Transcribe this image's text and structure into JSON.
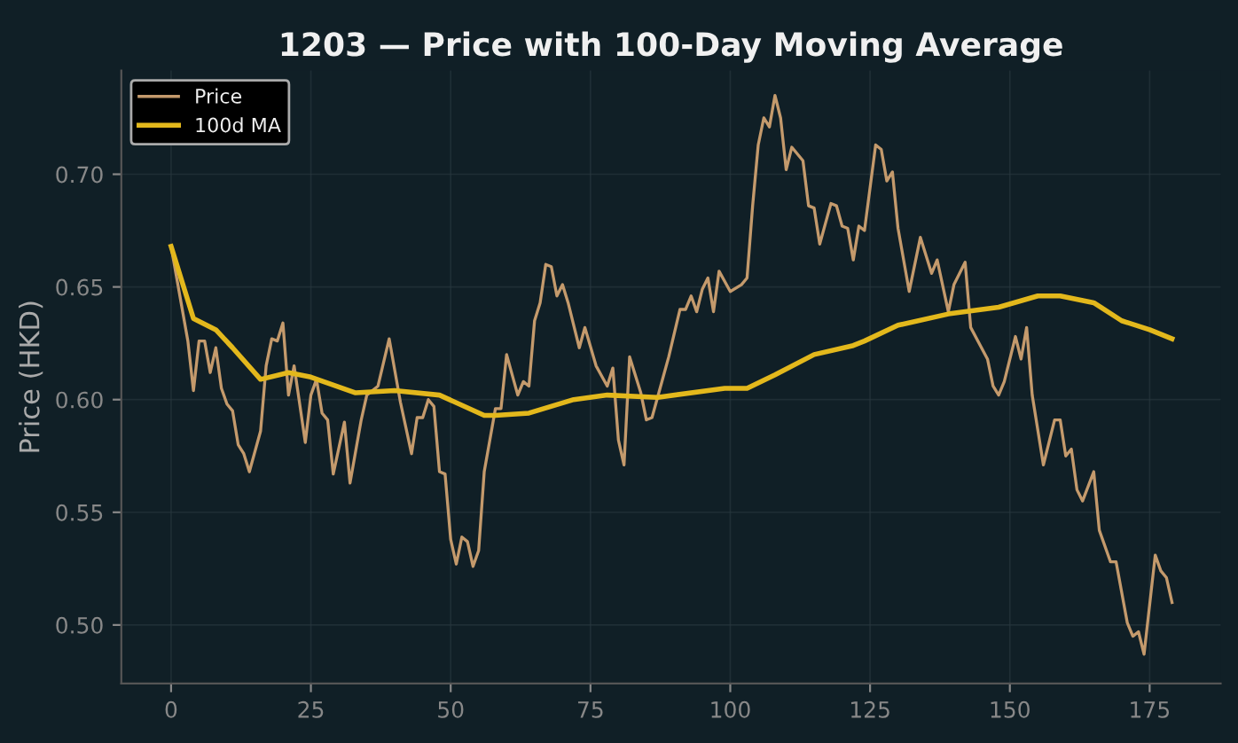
{
  "chart_data": {
    "type": "line",
    "title": "1203 — Price with 100-Day Moving Average",
    "ylabel": "Price (HKD)",
    "xlim": [
      -8.9,
      187.7
    ],
    "ylim": [
      0.474,
      0.746
    ],
    "xticks": [
      0,
      25,
      50,
      75,
      100,
      125,
      150,
      175
    ],
    "yticks": [
      {
        "value": 0.5,
        "label": "0.50"
      },
      {
        "value": 0.55,
        "label": "0.55"
      },
      {
        "value": 0.6,
        "label": "0.60"
      },
      {
        "value": 0.65,
        "label": "0.65"
      },
      {
        "value": 0.7,
        "label": "0.70"
      }
    ],
    "grid": true,
    "legend": "top left",
    "series": [
      {
        "name": "Price",
        "color": "#c49a6c",
        "x": [
          0,
          3,
          4,
          5,
          6,
          7,
          8,
          9,
          10,
          11,
          12,
          13,
          14,
          16,
          17,
          18,
          19,
          20,
          21,
          22,
          24,
          25,
          26,
          27,
          28,
          29,
          31,
          32,
          34,
          35,
          37,
          39,
          41,
          43,
          44,
          45,
          46,
          47,
          48,
          49,
          50,
          51,
          52,
          53,
          54,
          55,
          56,
          58,
          59,
          60,
          62,
          63,
          64,
          65,
          66,
          67,
          68,
          69,
          70,
          71,
          73,
          74,
          76,
          78,
          79,
          80,
          81,
          82,
          84,
          85,
          86,
          88,
          89,
          91,
          92,
          93,
          94,
          95,
          96,
          97,
          98,
          100,
          102,
          103,
          104,
          105,
          106,
          107,
          108,
          109,
          110,
          111,
          113,
          114,
          115,
          116,
          118,
          119,
          120,
          121,
          122,
          123,
          124,
          126,
          127,
          128,
          129,
          130,
          132,
          134,
          136,
          137,
          139,
          140,
          142,
          143,
          146,
          147,
          148,
          149,
          151,
          152,
          153,
          154,
          156,
          158,
          159,
          160,
          161,
          162,
          163,
          165,
          166,
          168,
          169,
          171,
          172,
          173,
          174,
          176,
          177,
          178,
          179
        ],
        "values": [
          0.668,
          0.626,
          0.604,
          0.626,
          0.626,
          0.612,
          0.623,
          0.605,
          0.598,
          0.595,
          0.58,
          0.576,
          0.568,
          0.586,
          0.615,
          0.627,
          0.626,
          0.634,
          0.602,
          0.615,
          0.581,
          0.602,
          0.609,
          0.594,
          0.591,
          0.567,
          0.59,
          0.563,
          0.591,
          0.602,
          0.606,
          0.627,
          0.599,
          0.576,
          0.592,
          0.592,
          0.6,
          0.597,
          0.568,
          0.567,
          0.538,
          0.527,
          0.539,
          0.537,
          0.526,
          0.533,
          0.568,
          0.596,
          0.596,
          0.62,
          0.602,
          0.608,
          0.606,
          0.635,
          0.643,
          0.66,
          0.659,
          0.646,
          0.651,
          0.643,
          0.623,
          0.632,
          0.615,
          0.606,
          0.614,
          0.582,
          0.571,
          0.619,
          0.603,
          0.591,
          0.592,
          0.61,
          0.619,
          0.64,
          0.64,
          0.646,
          0.639,
          0.649,
          0.654,
          0.639,
          0.657,
          0.648,
          0.651,
          0.654,
          0.686,
          0.713,
          0.725,
          0.721,
          0.735,
          0.725,
          0.702,
          0.712,
          0.706,
          0.686,
          0.685,
          0.669,
          0.687,
          0.686,
          0.677,
          0.676,
          0.662,
          0.677,
          0.675,
          0.713,
          0.711,
          0.697,
          0.701,
          0.676,
          0.648,
          0.672,
          0.656,
          0.662,
          0.639,
          0.651,
          0.661,
          0.632,
          0.618,
          0.606,
          0.602,
          0.608,
          0.628,
          0.618,
          0.632,
          0.602,
          0.571,
          0.591,
          0.591,
          0.575,
          0.578,
          0.56,
          0.555,
          0.568,
          0.542,
          0.528,
          0.528,
          0.501,
          0.495,
          0.497,
          0.487,
          0.531,
          0.524,
          0.521,
          0.51
        ]
      },
      {
        "name": "100d MA",
        "color": "#e3b81c",
        "x": [
          0,
          4,
          8,
          11,
          16,
          21,
          25,
          33,
          40,
          48,
          56,
          58,
          64,
          72,
          78,
          87,
          99,
          103,
          108,
          115,
          122,
          124,
          130,
          139,
          148,
          155,
          159,
          165,
          170,
          175,
          179
        ],
        "values": [
          0.668,
          0.636,
          0.631,
          0.623,
          0.609,
          0.612,
          0.61,
          0.603,
          0.604,
          0.602,
          0.593,
          0.593,
          0.594,
          0.6,
          0.602,
          0.601,
          0.605,
          0.605,
          0.611,
          0.62,
          0.624,
          0.626,
          0.633,
          0.638,
          0.641,
          0.646,
          0.646,
          0.643,
          0.635,
          0.631,
          0.627
        ]
      }
    ]
  }
}
